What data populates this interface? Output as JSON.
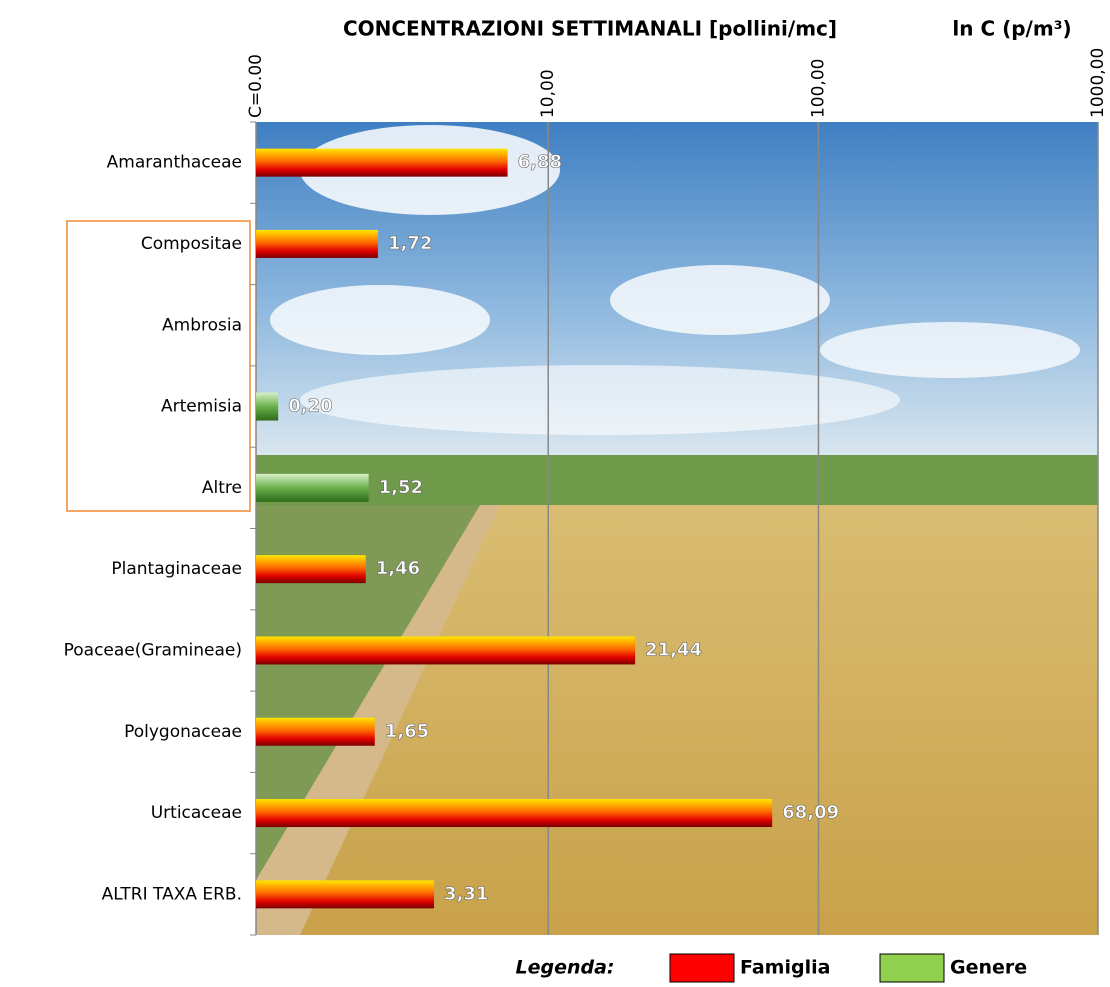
{
  "chart_data": {
    "type": "bar",
    "orientation": "horizontal",
    "title": "CONCENTRAZIONI SETTIMANALI  [pollini/mc]",
    "axis_label": "ln C (p/m³)",
    "categories": [
      "Amaranthaceae",
      "Compositae",
      "Ambrosia",
      "Artemisia",
      "Altre",
      "Plantaginaceae",
      "Poaceae(Gramineae)",
      "Polygonaceae",
      "Urticaceae",
      "ALTRI TAXA ERB."
    ],
    "values": [
      6.88,
      1.72,
      null,
      0.2,
      1.52,
      1.46,
      21.44,
      1.65,
      68.09,
      3.31
    ],
    "value_labels": [
      "6,88",
      "1,72",
      null,
      "0,20",
      "1,52",
      "1,46",
      "21,44",
      "1,65",
      "68,09",
      "3,31"
    ],
    "bar_group": [
      "Famiglia",
      "Famiglia",
      "Genere",
      "Genere",
      "Genere",
      "Famiglia",
      "Famiglia",
      "Famiglia",
      "Famiglia",
      "Famiglia"
    ],
    "xscale": "log1p",
    "xlim": [
      0,
      1000
    ],
    "xticks": [
      {
        "value": 0,
        "label": "C=0.00"
      },
      {
        "value": 10,
        "label": "10,00"
      },
      {
        "value": 100,
        "label": "100,00"
      },
      {
        "value": 1000,
        "label": "1000,00"
      }
    ],
    "grid": true,
    "legend_title": "Legenda:",
    "legend": [
      {
        "name": "Famiglia",
        "color": "#ff0000"
      },
      {
        "name": "Genere",
        "color": "#92d050"
      }
    ]
  }
}
